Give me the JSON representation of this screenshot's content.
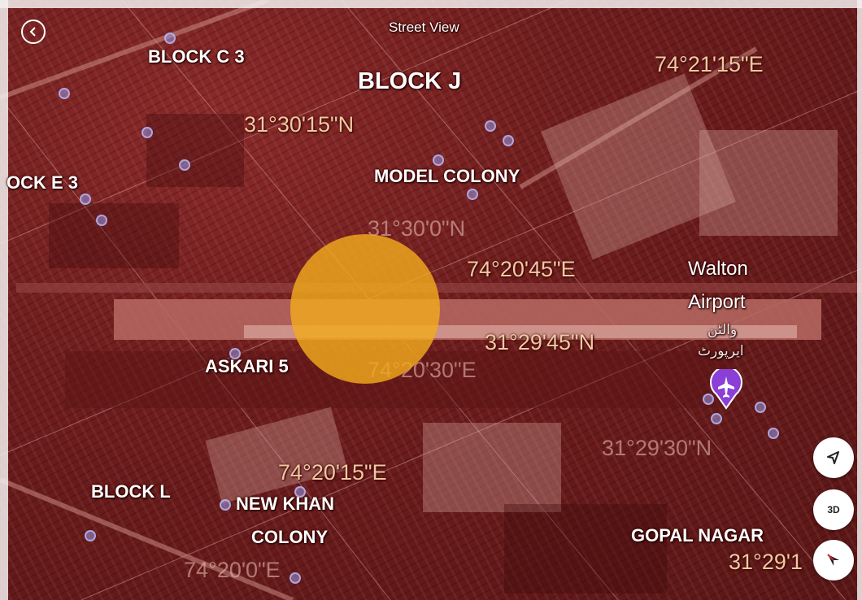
{
  "map": {
    "street_view_label": "Street View",
    "back_icon": "chevron-left-icon",
    "colors": {
      "overlay": "#6e1d1d",
      "runway": "#b86a63",
      "user_location": "#f2a91d",
      "airport_pin": "#8b3fd6",
      "coordinate_text": "#f0c9a2"
    },
    "area_labels": [
      {
        "id": "block-c3",
        "text": "BLOCK C 3"
      },
      {
        "id": "block-j",
        "text": "BLOCK J"
      },
      {
        "id": "block-e3",
        "text": "OCK E 3"
      },
      {
        "id": "model-colony",
        "text": "MODEL COLONY"
      },
      {
        "id": "askari-5",
        "text": "ASKARI 5"
      },
      {
        "id": "block-l",
        "text": "BLOCK L"
      },
      {
        "id": "new-khan-colony-1",
        "text": "NEW KHAN"
      },
      {
        "id": "new-khan-colony-2",
        "text": "COLONY"
      },
      {
        "id": "gopal-nagar",
        "text": "GOPAL NAGAR"
      }
    ],
    "airport": {
      "name_line1": "Walton",
      "name_line2": "Airport",
      "urdu_line1": "والٹن",
      "urdu_line2": "ایرپورٹ",
      "icon": "airplane-icon"
    },
    "coordinate_labels": [
      {
        "id": "lon-211",
        "text": "74°21'15\"E"
      },
      {
        "id": "lat-3015",
        "text": "31°30'15\"N"
      },
      {
        "id": "lat-3000-faint",
        "text": "31°30'0\"N"
      },
      {
        "id": "lon-2045",
        "text": "74°20'45\"E"
      },
      {
        "id": "lat-2945",
        "text": "31°29'45\"N"
      },
      {
        "id": "lon-2030-faint",
        "text": "74°20'30\"E"
      },
      {
        "id": "lat-2930-faint",
        "text": "31°29'30\"N"
      },
      {
        "id": "lon-2015",
        "text": "74°20'15\"E"
      },
      {
        "id": "lon-200-faint",
        "text": "74°20'0\"E"
      },
      {
        "id": "lat-2915",
        "text": "31°29'1"
      }
    ],
    "controls": {
      "locate_icon": "navigation-arrow-icon",
      "view_3d_label": "3D",
      "compass_icon": "compass-icon"
    }
  }
}
